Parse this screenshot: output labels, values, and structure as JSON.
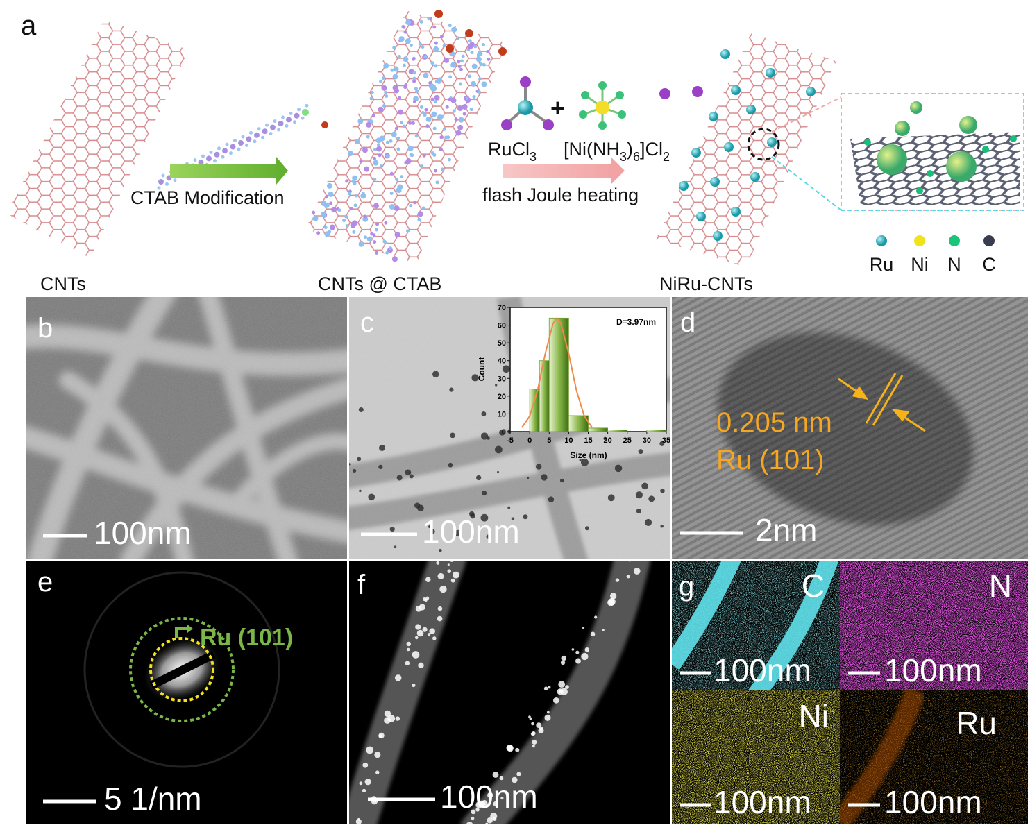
{
  "panel_a": {
    "label": "a",
    "cnts": "CNTs",
    "ctab_step": "CTAB Modification",
    "cnts_ctab": "CNTs @ CTAB",
    "rucl3": [
      "RuCl",
      "3"
    ],
    "plus": "+",
    "ni_complex": [
      "[Ni(NH",
      "3",
      ")",
      "6",
      "]Cl",
      "2"
    ],
    "heating": "flash Joule heating",
    "product": "NiRu-CNTs",
    "legend": [
      "Ru",
      "Ni",
      "N",
      "C"
    ]
  },
  "panel_b": {
    "label": "b",
    "scale": "100nm"
  },
  "panel_c": {
    "label": "c",
    "scale": "100nm"
  },
  "panel_d": {
    "label": "d",
    "scale": "2nm",
    "spacing": "0.205 nm",
    "plane": "Ru (101)"
  },
  "panel_e": {
    "label": "e",
    "scale": "5 1/nm",
    "ring": "Ru (101)"
  },
  "panel_f": {
    "label": "f",
    "scale": "100nm"
  },
  "panel_g": {
    "label": "g",
    "maps": [
      {
        "element": "C",
        "scale": "100nm"
      },
      {
        "element": "N",
        "scale": "100nm"
      },
      {
        "element": "Ni",
        "scale": "100nm"
      },
      {
        "element": "Ru",
        "scale": "100nm"
      }
    ]
  },
  "chart_data": {
    "type": "histogram",
    "annotation": "D=3.97nm",
    "x_label": "Size (nm)",
    "y_label": "Count",
    "bins": [
      0,
      2.5,
      5,
      10,
      15,
      20,
      25,
      30,
      35
    ],
    "values": [
      24,
      40,
      64,
      9,
      2,
      1,
      0,
      1
    ],
    "color": "#6d9b2c",
    "fit": {
      "x": [
        -2,
        0,
        2,
        4,
        6,
        7,
        8,
        10,
        12,
        14,
        16
      ],
      "values": [
        2.3,
        8.7,
        23,
        44,
        61,
        64,
        61,
        44,
        23,
        8.7,
        2.3
      ],
      "color": "#f08a4b"
    },
    "xlim": [
      -5,
      35
    ],
    "xticks": [
      -5,
      0,
      5,
      10,
      15,
      20,
      25,
      30,
      35
    ],
    "ylim": [
      0,
      70
    ],
    "yticks": [
      0,
      10,
      20,
      30,
      40,
      50,
      60,
      70
    ]
  }
}
